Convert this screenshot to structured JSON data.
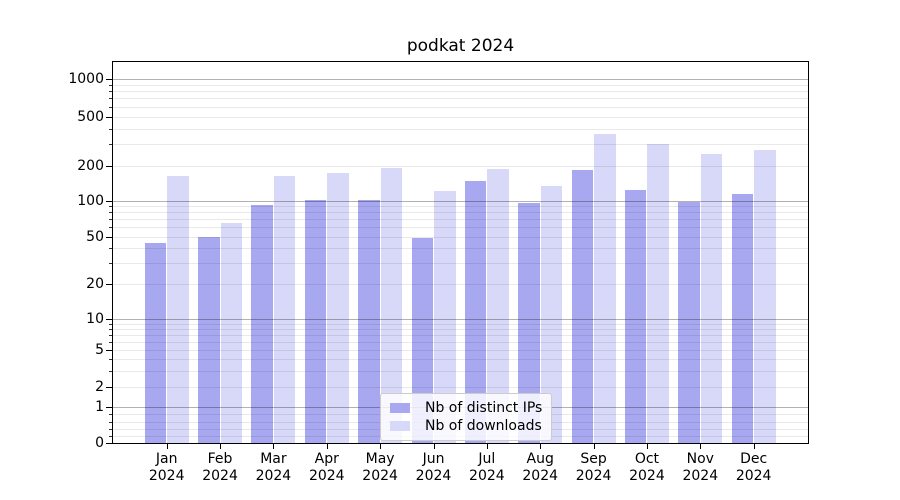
{
  "chart_data": {
    "type": "bar",
    "title": "podkat 2024",
    "categories": [
      "Jan 2024",
      "Feb 2024",
      "Mar 2024",
      "Apr 2024",
      "May 2024",
      "Jun 2024",
      "Jul 2024",
      "Aug 2024",
      "Sep 2024",
      "Oct 2024",
      "Nov 2024",
      "Dec 2024"
    ],
    "months": [
      "Jan",
      "Feb",
      "Mar",
      "Apr",
      "May",
      "Jun",
      "Jul",
      "Aug",
      "Sep",
      "Oct",
      "Nov",
      "Dec"
    ],
    "year_label": "2024",
    "series": [
      {
        "name": "Nb of distinct IPs",
        "color": "#a8a8f0",
        "values": [
          44,
          50,
          93,
          102,
          102,
          49,
          148,
          96,
          185,
          124,
          98,
          115
        ]
      },
      {
        "name": "Nb of downloads",
        "color": "#d8d8f8",
        "values": [
          164,
          65,
          165,
          174,
          191,
          121,
          186,
          134,
          362,
          303,
          247,
          266
        ]
      }
    ],
    "y_axis": {
      "scale": "symlog",
      "tick_values": [
        0,
        1,
        2,
        5,
        10,
        20,
        50,
        100,
        200,
        500,
        1000
      ],
      "tick_labels": [
        "0",
        "1",
        "2",
        "5",
        "10",
        "20",
        "50",
        "100",
        "200",
        "500",
        "1000"
      ]
    },
    "x_axis": {
      "tick_labels_line1": [
        "Jan",
        "Feb",
        "Mar",
        "Apr",
        "May",
        "Jun",
        "Jul",
        "Aug",
        "Sep",
        "Oct",
        "Nov",
        "Dec"
      ],
      "tick_labels_line2": "2024"
    },
    "grid": {
      "enabled": true,
      "major_color": "#b3b3b3",
      "minor_color": "#e9e9e9"
    },
    "legend": {
      "position": "lower center",
      "items": [
        "Nb of distinct IPs",
        "Nb of downloads"
      ]
    },
    "colors": {
      "bar_dark": "#a8a8f0",
      "bar_light": "#d8d8f8"
    }
  }
}
